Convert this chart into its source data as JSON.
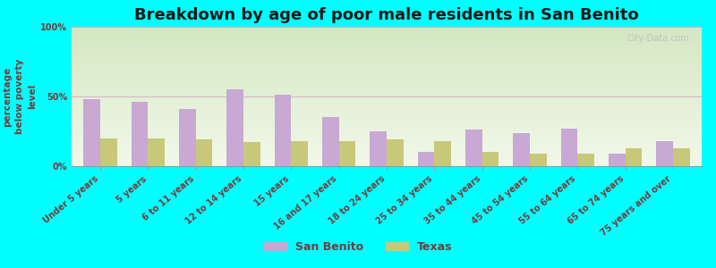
{
  "title": "Breakdown by age of poor male residents in San Benito",
  "ylabel": "percentage\nbelow poverty\nlevel",
  "categories": [
    "Under 5 years",
    "5 years",
    "6 to 11 years",
    "12 to 14 years",
    "15 years",
    "16 and 17 years",
    "18 to 24 years",
    "25 to 34 years",
    "35 to 44 years",
    "45 to 54 years",
    "55 to 64 years",
    "65 to 74 years",
    "75 years and over"
  ],
  "san_benito": [
    48,
    46,
    41,
    55,
    51,
    35,
    25,
    10,
    26,
    24,
    27,
    9,
    18
  ],
  "texas": [
    20,
    20,
    19,
    17,
    18,
    18,
    19,
    18,
    10,
    9,
    9,
    13,
    13
  ],
  "san_benito_color": "#c9a8d4",
  "texas_color": "#c8c87a",
  "background_color": "#00ffff",
  "grad_top": "#d4e8c2",
  "grad_bottom": "#f2f8ea",
  "title_color": "#1a1a1a",
  "label_color": "#7a3a3a",
  "ylim": [
    0,
    100
  ],
  "yticks": [
    0,
    50,
    100
  ],
  "ytick_labels": [
    "0%",
    "50%",
    "100%"
  ],
  "bar_width": 0.35,
  "title_fontsize": 13,
  "tick_fontsize": 7,
  "ylabel_fontsize": 7.5,
  "legend_labels": [
    "San Benito",
    "Texas"
  ],
  "legend_fontsize": 9,
  "watermark": "City-Data.com"
}
